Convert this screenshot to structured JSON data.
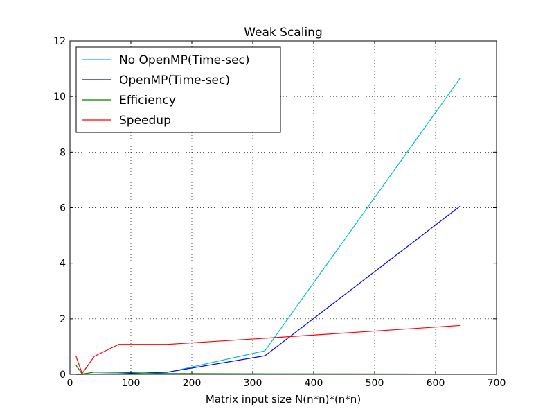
{
  "chart_data": {
    "type": "line",
    "title": "Weak Scaling",
    "xlabel": "Matrix input size N(n*n)*(n*n)",
    "ylabel": "",
    "xlim": [
      0,
      700
    ],
    "ylim": [
      0,
      12
    ],
    "xticks": [
      "0",
      "100",
      "200",
      "300",
      "400",
      "500",
      "600",
      "700"
    ],
    "yticks": [
      "0",
      "2",
      "4",
      "6",
      "8",
      "10",
      "12"
    ],
    "grid": true,
    "legend_position": "top-left",
    "x": [
      10,
      20,
      40,
      80,
      160,
      320,
      640
    ],
    "series": [
      {
        "name": "No OpenMP(Time-sec)",
        "color": "#00bfbf",
        "values": [
          0.0,
          0.0,
          0.01,
          0.02,
          0.07,
          0.85,
          10.65
        ]
      },
      {
        "name": "OpenMP(Time-sec)",
        "color": "#0000ff",
        "values": [
          0.0,
          0.0,
          0.01,
          0.02,
          0.08,
          0.67,
          6.05
        ]
      },
      {
        "name": "Efficiency",
        "color": "#008000",
        "values": [
          0.33,
          0.01,
          0.08,
          0.07,
          0.03,
          0.02,
          0.01
        ]
      },
      {
        "name": "Speedup",
        "color": "#ff0000",
        "values": [
          0.65,
          0.03,
          0.65,
          1.08,
          1.08,
          1.3,
          1.76
        ]
      }
    ]
  }
}
